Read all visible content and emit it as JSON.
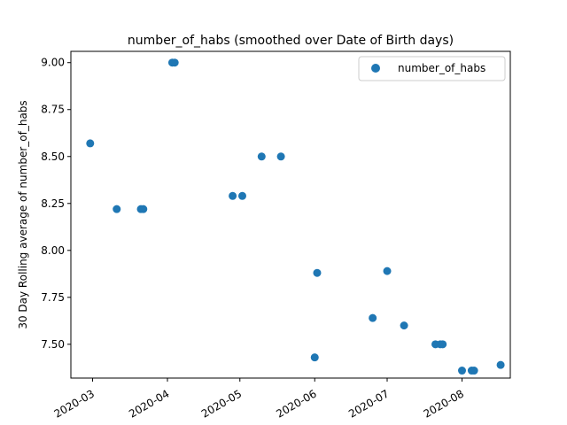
{
  "chart_data": {
    "type": "scatter",
    "title": "number_of_habs (smoothed over Date of Birth days)",
    "xlabel": "",
    "ylabel": "30 Day Rolling average of number_of_habs",
    "xlim": [
      "2020-02-21",
      "2020-08-21"
    ],
    "ylim": [
      7.32,
      9.06
    ],
    "x_ticks": [
      "2020-03",
      "2020-04",
      "2020-05",
      "2020-06",
      "2020-07",
      "2020-08"
    ],
    "y_ticks": [
      "7.50",
      "7.75",
      "8.00",
      "8.25",
      "8.50",
      "8.75",
      "9.00"
    ],
    "grid": false,
    "legend_position": "upper right",
    "series": [
      {
        "name": "number_of_habs",
        "color": "#1f77b4",
        "marker": "circle",
        "points": [
          {
            "x": "2020-02-29",
            "y": 8.57
          },
          {
            "x": "2020-03-11",
            "y": 8.22
          },
          {
            "x": "2020-03-21",
            "y": 8.22
          },
          {
            "x": "2020-03-22",
            "y": 8.22
          },
          {
            "x": "2020-04-03",
            "y": 9.0
          },
          {
            "x": "2020-04-04",
            "y": 9.0
          },
          {
            "x": "2020-04-28",
            "y": 8.29
          },
          {
            "x": "2020-05-02",
            "y": 8.29
          },
          {
            "x": "2020-05-10",
            "y": 8.5
          },
          {
            "x": "2020-05-18",
            "y": 8.5
          },
          {
            "x": "2020-06-01",
            "y": 7.43
          },
          {
            "x": "2020-06-02",
            "y": 7.88
          },
          {
            "x": "2020-06-25",
            "y": 7.64
          },
          {
            "x": "2020-07-01",
            "y": 7.89
          },
          {
            "x": "2020-07-08",
            "y": 7.6
          },
          {
            "x": "2020-07-21",
            "y": 7.5
          },
          {
            "x": "2020-07-23",
            "y": 7.5
          },
          {
            "x": "2020-07-24",
            "y": 7.5
          },
          {
            "x": "2020-08-01",
            "y": 7.36
          },
          {
            "x": "2020-08-05",
            "y": 7.36
          },
          {
            "x": "2020-08-06",
            "y": 7.36
          },
          {
            "x": "2020-08-17",
            "y": 7.39
          }
        ]
      }
    ]
  }
}
